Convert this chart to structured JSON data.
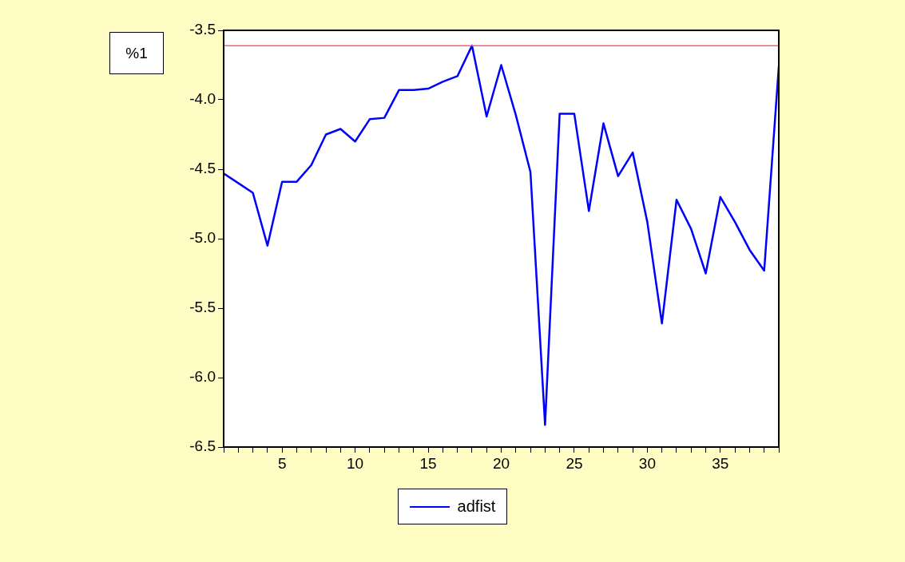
{
  "chart_data": {
    "type": "line",
    "x": [
      1,
      2,
      3,
      4,
      5,
      6,
      7,
      8,
      9,
      10,
      11,
      12,
      13,
      14,
      15,
      16,
      17,
      18,
      19,
      20,
      21,
      22,
      23,
      24,
      25,
      26,
      27,
      28,
      29,
      30,
      31,
      32,
      33,
      34,
      35,
      36,
      37,
      38,
      39
    ],
    "series": [
      {
        "name": "adfist",
        "color": "#0000ff",
        "values": [
          -4.53,
          -4.6,
          -4.67,
          -5.05,
          -4.59,
          -4.59,
          -4.47,
          -4.25,
          -4.21,
          -4.3,
          -4.14,
          -4.13,
          -3.93,
          -3.93,
          -3.92,
          -3.87,
          -3.83,
          -3.61,
          -4.12,
          -3.75,
          -4.11,
          -4.52,
          -6.34,
          -4.1,
          -4.1,
          -4.8,
          -4.17,
          -4.55,
          -4.38,
          -4.88,
          -5.61,
          -4.72,
          -4.93,
          -5.25,
          -4.7,
          -4.88,
          -5.08,
          -5.23,
          -3.76
        ]
      }
    ],
    "xlim": [
      1,
      39
    ],
    "xticks": [
      {
        "value": 1,
        "label": null
      },
      {
        "value": 2,
        "label": null
      },
      {
        "value": 3,
        "label": null
      },
      {
        "value": 4,
        "label": null
      },
      5,
      {
        "value": 6,
        "label": null
      },
      {
        "value": 7,
        "label": null
      },
      {
        "value": 8,
        "label": null
      },
      {
        "value": 9,
        "label": null
      },
      10,
      {
        "value": 11,
        "label": null
      },
      {
        "value": 12,
        "label": null
      },
      {
        "value": 13,
        "label": null
      },
      {
        "value": 14,
        "label": null
      },
      15,
      {
        "value": 16,
        "label": null
      },
      {
        "value": 17,
        "label": null
      },
      {
        "value": 18,
        "label": null
      },
      {
        "value": 19,
        "label": null
      },
      20,
      {
        "value": 21,
        "label": null
      },
      {
        "value": 22,
        "label": null
      },
      {
        "value": 23,
        "label": null
      },
      {
        "value": 24,
        "label": null
      },
      25,
      {
        "value": 26,
        "label": null
      },
      {
        "value": 27,
        "label": null
      },
      {
        "value": 28,
        "label": null
      },
      {
        "value": 29,
        "label": null
      },
      30,
      {
        "value": 31,
        "label": null
      },
      {
        "value": 32,
        "label": null
      },
      {
        "value": 33,
        "label": null
      },
      {
        "value": 34,
        "label": null
      },
      35,
      {
        "value": 36,
        "label": null
      },
      {
        "value": 37,
        "label": null
      },
      {
        "value": 38,
        "label": null
      },
      {
        "value": 39,
        "label": null
      }
    ],
    "ylim": [
      -6.5,
      -3.5
    ],
    "yticks": [
      {
        "value": -6.5,
        "label": "-6.5"
      },
      {
        "value": -6,
        "label": "-6.0"
      },
      {
        "value": -5.5,
        "label": "-5.5"
      },
      {
        "value": -5,
        "label": "-5.0"
      },
      {
        "value": -4.5,
        "label": "-4.5"
      },
      {
        "value": -4,
        "label": "-4.0"
      },
      {
        "value": -3.5,
        "label": "-3.5"
      }
    ],
    "ref_lines": [
      {
        "axis": "y",
        "value": -3.61,
        "color": "#ff6060"
      }
    ],
    "annotations": [
      "%1"
    ],
    "grid": false,
    "legend": "bottom",
    "marker": "none",
    "line_style": "solid"
  }
}
